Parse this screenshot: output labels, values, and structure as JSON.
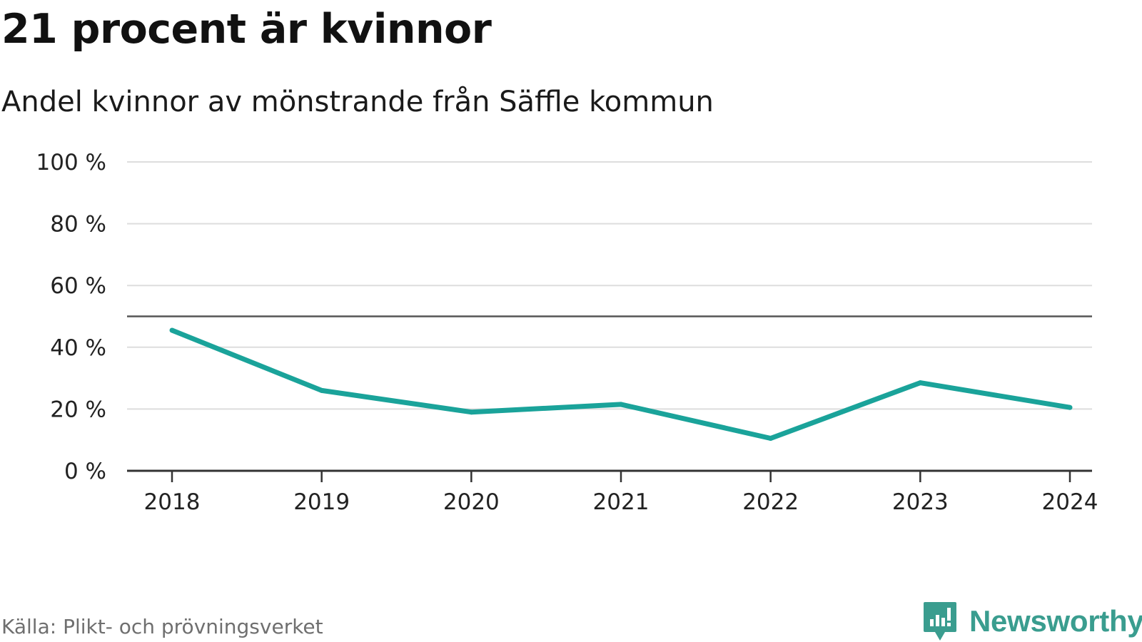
{
  "title": "21 procent är kvinnor",
  "subtitle": "Andel kvinnor av mönstrande från Säffle kommun",
  "source": "Källa: Plikt- och prövningsverket",
  "brand": {
    "name": "Newsworthy",
    "icon": "newsworthy-logo-icon",
    "color": "#3a9d8f"
  },
  "colors": {
    "line": "#1aa39a",
    "grid": "#dddddd",
    "axis": "#333333",
    "reference": "#555555"
  },
  "chart_data": {
    "type": "line",
    "title": "21 procent är kvinnor",
    "subtitle": "Andel kvinnor av mönstrande från Säffle kommun",
    "xlabel": "",
    "ylabel": "",
    "categories": [
      "2018",
      "2019",
      "2020",
      "2021",
      "2022",
      "2023",
      "2024"
    ],
    "series": [
      {
        "name": "Andel kvinnor",
        "values": [
          45.5,
          26,
          19,
          21.5,
          10.5,
          28.5,
          20.5
        ]
      }
    ],
    "ylim": [
      0,
      100
    ],
    "yticks": [
      0,
      20,
      40,
      60,
      80,
      100
    ],
    "ytick_labels": [
      "0 %",
      "20 %",
      "40 %",
      "60 %",
      "80 %",
      "100 %"
    ],
    "reference_line": 50,
    "grid": true,
    "legend": "none"
  }
}
